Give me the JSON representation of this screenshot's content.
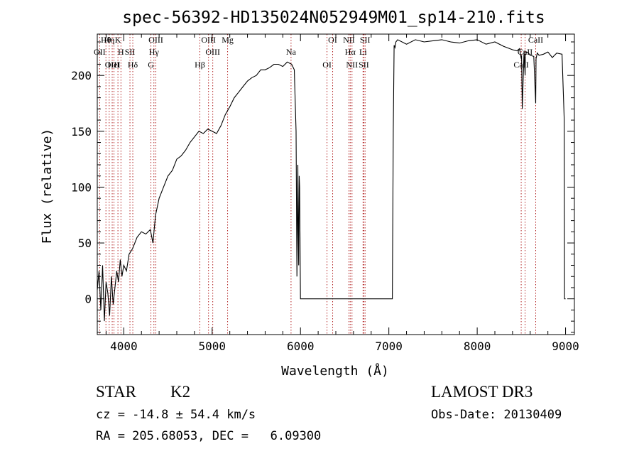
{
  "chart_data": {
    "type": "line",
    "title": "spec-56392-HD135024N052949M01_sp14-210.fits",
    "xlabel": "Wavelength (Å)",
    "ylabel": "Flux (relative)",
    "xlim": [
      3700,
      9100
    ],
    "ylim": [
      -32,
      237
    ],
    "xticks": [
      4000,
      5000,
      6000,
      7000,
      8000,
      9000
    ],
    "yticks": [
      0,
      50,
      100,
      150,
      200
    ],
    "grid": false,
    "line_color": "#000000",
    "marker_color": "#b22222",
    "series": [
      {
        "x": [
          3700,
          3720,
          3740,
          3760,
          3780,
          3800,
          3820,
          3840,
          3860,
          3880,
          3900,
          3920,
          3940,
          3960,
          3980,
          4000,
          4030,
          4060,
          4100,
          4150,
          4200,
          4250,
          4300,
          4330,
          4360,
          4400,
          4450,
          4500,
          4550,
          4600,
          4650,
          4700,
          4750,
          4800,
          4850,
          4900,
          4950,
          5000,
          5050,
          5100,
          5150,
          5200,
          5250,
          5300,
          5350,
          5400,
          5450,
          5500,
          5550,
          5600,
          5650,
          5700,
          5750,
          5800,
          5850,
          5900,
          5930,
          5950,
          5960,
          5970,
          5975,
          5980,
          5985,
          5990,
          6000,
          6500,
          7000,
          7030,
          7040,
          7050,
          7060,
          7070,
          7080,
          7100,
          7200,
          7300,
          7400,
          7500,
          7600,
          7700,
          7800,
          7900,
          8000,
          8100,
          8200,
          8300,
          8400,
          8450,
          8480,
          8498,
          8502,
          8510,
          8530,
          8542,
          8545,
          8560,
          8580,
          8600,
          8640,
          8662,
          8666,
          8680,
          8700,
          8750,
          8800,
          8850,
          8900,
          8960,
          8985,
          8988,
          9000
        ],
        "y": [
          8,
          25,
          -10,
          30,
          -20,
          15,
          5,
          -15,
          20,
          -5,
          10,
          25,
          15,
          35,
          20,
          30,
          25,
          40,
          45,
          55,
          60,
          58,
          62,
          50,
          75,
          90,
          100,
          110,
          115,
          125,
          128,
          133,
          140,
          145,
          150,
          148,
          152,
          150,
          148,
          155,
          165,
          172,
          180,
          185,
          190,
          195,
          198,
          200,
          205,
          205,
          207,
          210,
          210,
          208,
          212,
          210,
          205,
          150,
          20,
          120,
          60,
          30,
          110,
          100,
          0,
          0,
          0,
          0,
          0,
          150,
          227,
          225,
          230,
          232,
          228,
          232,
          230,
          231,
          232,
          230,
          229,
          231,
          232,
          228,
          230,
          226,
          223,
          222,
          224,
          215,
          218,
          170,
          222,
          200,
          218,
          221,
          220,
          218,
          217,
          175,
          215,
          220,
          218,
          219,
          221,
          216,
          220,
          219,
          160,
          0,
          0
        ]
      }
    ],
    "spectral_lines": [
      {
        "label": "Hθ",
        "x": 3798
      },
      {
        "label": "OII",
        "x": 3727
      },
      {
        "label": "OIII",
        "x": 3869
      },
      {
        "label": "K",
        "x": 3934
      },
      {
        "label": "H",
        "x": 3968
      },
      {
        "label": "HeI",
        "x": 3889
      },
      {
        "label": "Hη",
        "x": 3835
      },
      {
        "label": "SII",
        "x": 4070
      },
      {
        "label": "Hδ",
        "x": 4102
      },
      {
        "label": "OIII",
        "x": 4363
      },
      {
        "label": "Hγ",
        "x": 4341
      },
      {
        "label": "G",
        "x": 4307
      },
      {
        "label": "OIII",
        "x": 4959
      },
      {
        "label": "OIII",
        "x": 5007
      },
      {
        "label": "Hβ",
        "x": 4861
      },
      {
        "label": "Mg",
        "x": 5175
      },
      {
        "label": "Na",
        "x": 5893
      },
      {
        "label": "OI",
        "x": 6300
      },
      {
        "label": "OI",
        "x": 6364
      },
      {
        "label": "Hα",
        "x": 6563
      },
      {
        "label": "SII",
        "x": 6717
      },
      {
        "label": "NII",
        "x": 6548
      },
      {
        "label": "Li",
        "x": 6708
      },
      {
        "label": "NII",
        "x": 6583
      },
      {
        "label": "SII",
        "x": 6731
      },
      {
        "label": "CaII",
        "x": 8542
      },
      {
        "label": "CaII",
        "x": 8498
      },
      {
        "label": "CaII",
        "x": 8662
      }
    ]
  },
  "info": {
    "class_label": "STAR",
    "subclass_label": "K2",
    "survey_label": "LAMOST DR3",
    "cz_text": "cz = -14.8 ± 54.4 km/s",
    "obs_date_text": "Obs-Date: 20130409",
    "radec_text": "RA = 205.68053, DEC =   6.09300"
  }
}
